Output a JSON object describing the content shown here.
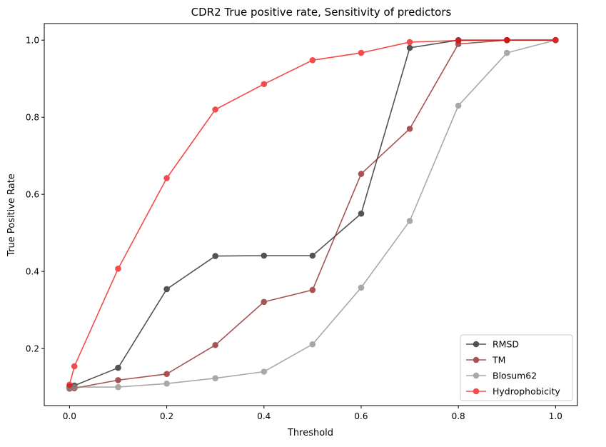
{
  "chart_data": {
    "type": "line",
    "title": "CDR2 True positive rate, Sensitivity of predictors",
    "xlabel": "Threshold",
    "ylabel": "True Positive Rate",
    "xlim": [
      -0.052,
      1.045
    ],
    "ylim": [
      0.052,
      1.043
    ],
    "xticks": [
      0.0,
      0.2,
      0.4,
      0.6,
      0.8,
      1.0
    ],
    "xtick_labels": [
      "0.0",
      "0.2",
      "0.4",
      "0.6",
      "0.8",
      "1.0"
    ],
    "yticks": [
      0.2,
      0.4,
      0.6,
      0.8,
      1.0
    ],
    "ytick_labels": [
      "0.2",
      "0.4",
      "0.6",
      "0.8",
      "1.0"
    ],
    "grid": false,
    "legend_position": "bottom-right",
    "x": [
      0.0,
      0.01,
      0.1,
      0.2,
      0.3,
      0.4,
      0.5,
      0.6,
      0.7,
      0.8,
      0.9,
      1.0
    ],
    "series": [
      {
        "name": "RMSD",
        "color": "#1a1a1a",
        "values": [
          0.101,
          0.104,
          0.15,
          0.354,
          0.44,
          0.441,
          0.441,
          0.55,
          0.98,
          1.0,
          1.0,
          1.0
        ]
      },
      {
        "name": "TM",
        "color": "#8b1a1a",
        "values": [
          0.096,
          0.097,
          0.118,
          0.134,
          0.209,
          0.321,
          0.352,
          0.653,
          0.77,
          0.99,
          1.0,
          1.0
        ]
      },
      {
        "name": "Blosum62",
        "color": "#8c8c8c",
        "values": [
          0.099,
          0.1,
          0.1,
          0.109,
          0.123,
          0.14,
          0.211,
          0.358,
          0.531,
          0.83,
          0.967,
          1.0
        ]
      },
      {
        "name": "Hydrophobicity",
        "color": "#ee1111",
        "values": [
          0.106,
          0.154,
          0.407,
          0.642,
          0.82,
          0.886,
          0.948,
          0.967,
          0.995,
          0.999,
          1.0,
          1.0
        ]
      }
    ]
  }
}
